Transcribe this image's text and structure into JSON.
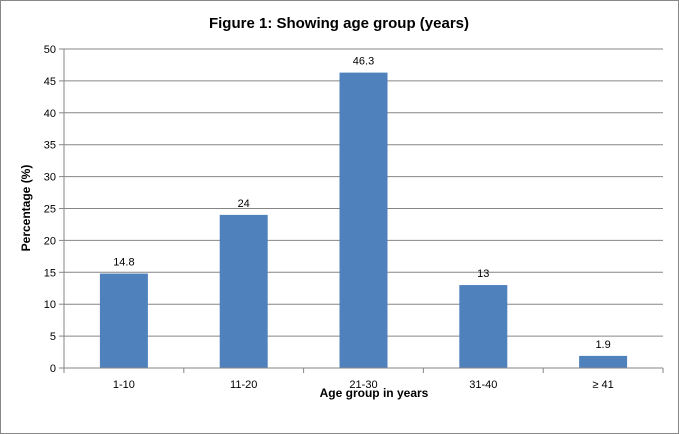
{
  "chart_data": {
    "type": "bar",
    "title": "Figure 1:  Showing age group  (years)",
    "xlabel": "Age group  in years",
    "ylabel": "Percentage (%)",
    "categories": [
      "1-10",
      "11-20",
      "21-30",
      "31-40",
      "≥ 41"
    ],
    "values": [
      14.8,
      24,
      46.3,
      13,
      1.9
    ],
    "data_labels": [
      "14.8",
      "24",
      "46.3",
      "13",
      "1.9"
    ],
    "ylim": [
      0,
      50
    ],
    "yticks": [
      "0",
      "5",
      "10",
      "15",
      "20",
      "25",
      "30",
      "35",
      "40",
      "45",
      "50"
    ],
    "grid": true,
    "legend": "none",
    "bar_color": "#4F81BD"
  }
}
